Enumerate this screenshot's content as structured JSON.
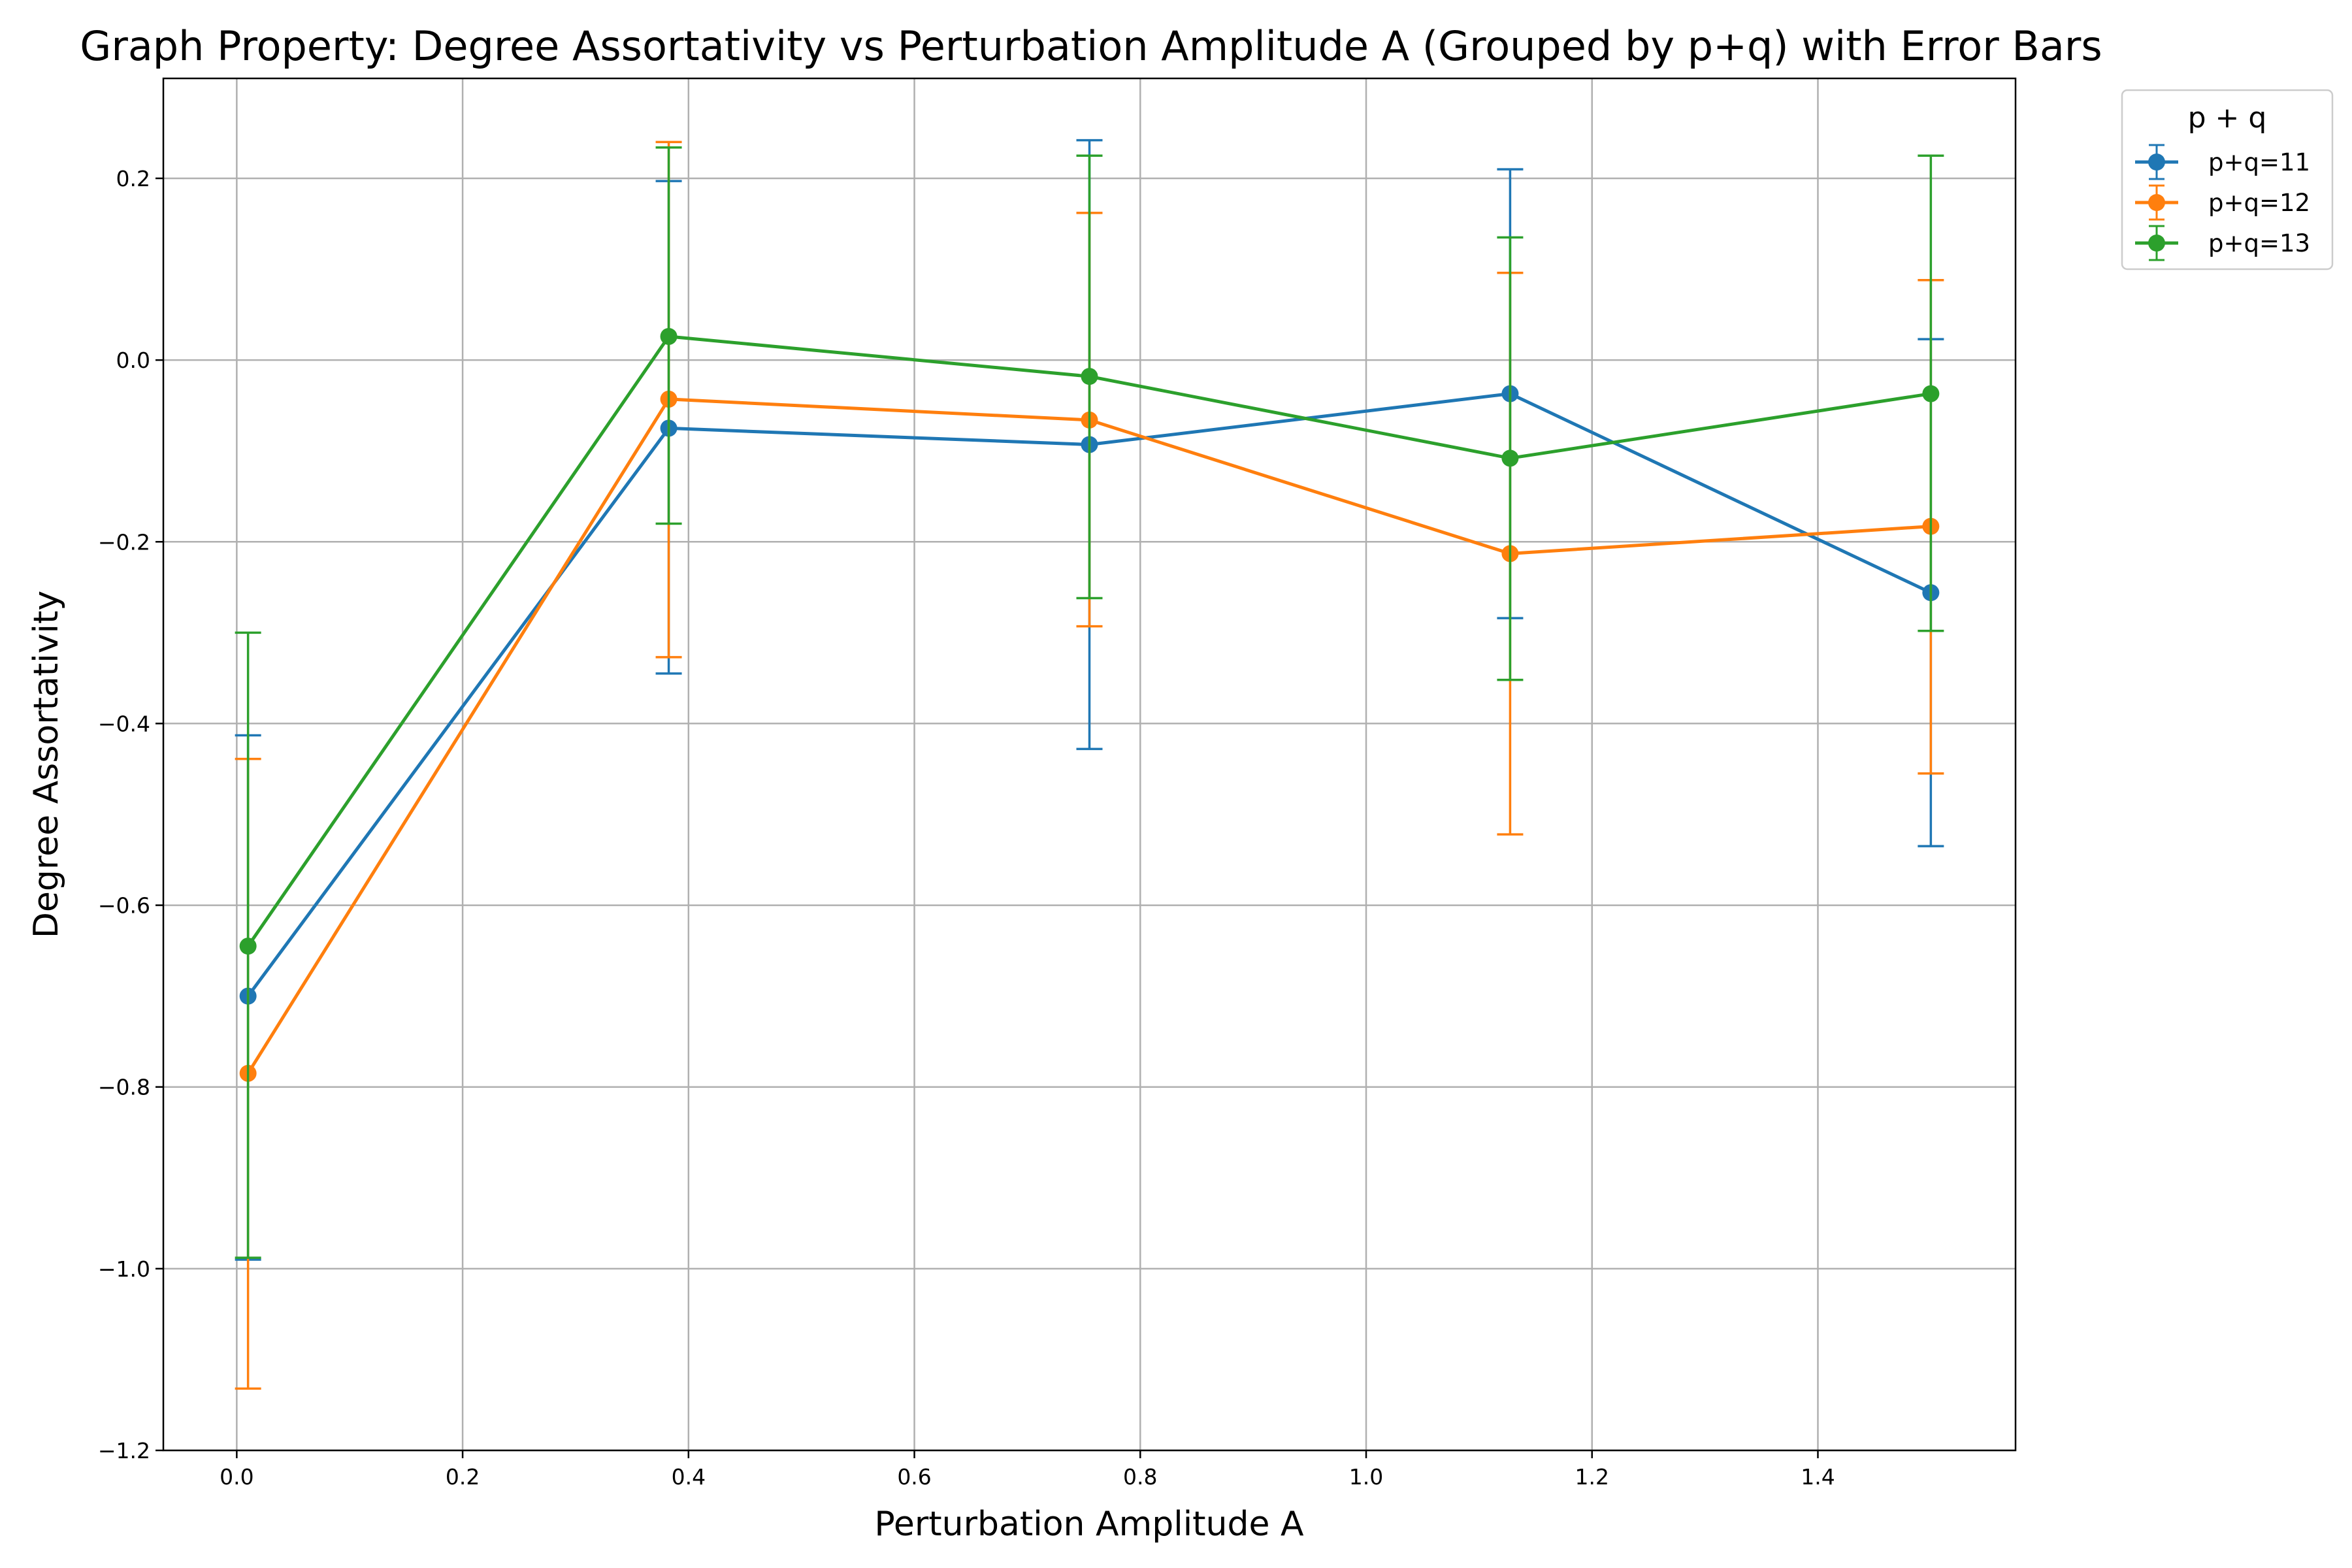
{
  "chart_data": {
    "type": "line",
    "title": "Graph Property: Degree Assortativity vs Perturbation Amplitude A (Grouped by p+q) with Error Bars",
    "xlabel": "Perturbation Amplitude A",
    "ylabel": "Degree Assortativity",
    "xlim": [
      -0.065,
      1.575
    ],
    "ylim": [
      -1.2,
      0.31
    ],
    "x_ticks": [
      0.0,
      0.2,
      0.4,
      0.6,
      0.8,
      1.0,
      1.2,
      1.4
    ],
    "x_tick_labels": [
      "0.0",
      "0.2",
      "0.4",
      "0.6",
      "0.8",
      "1.0",
      "1.2",
      "1.4"
    ],
    "y_ticks": [
      -1.2,
      -1.0,
      -0.8,
      -0.6,
      -0.4,
      -0.2,
      0.0,
      0.2
    ],
    "y_tick_labels": [
      "−1.2",
      "−1.0",
      "−0.8",
      "−0.6",
      "−0.4",
      "−0.2",
      "0.0",
      "0.2"
    ],
    "grid": true,
    "legend_title": "p + q",
    "legend_position": "outside top-right",
    "x": [
      0.01,
      0.3825,
      0.755,
      1.1275,
      1.5
    ],
    "series": [
      {
        "name": "p+q=11",
        "color": "#1f77b4",
        "values": [
          -0.7,
          -0.075,
          -0.093,
          -0.037,
          -0.256
        ],
        "err_low": [
          -0.99,
          -0.345,
          -0.428,
          -0.284,
          -0.535
        ],
        "err_high": [
          -0.413,
          0.197,
          0.242,
          0.21,
          0.023
        ]
      },
      {
        "name": "p+q=12",
        "color": "#ff7f0e",
        "values": [
          -0.785,
          -0.043,
          -0.066,
          -0.213,
          -0.183
        ],
        "err_low": [
          -1.132,
          -0.327,
          -0.293,
          -0.522,
          -0.455
        ],
        "err_high": [
          -0.439,
          0.24,
          0.162,
          0.096,
          0.088
        ]
      },
      {
        "name": "p+q=13",
        "color": "#2ca02c",
        "values": [
          -0.645,
          0.026,
          -0.018,
          -0.108,
          -0.037
        ],
        "err_low": [
          -0.988,
          -0.18,
          -0.262,
          -0.352,
          -0.298
        ],
        "err_high": [
          -0.3,
          0.234,
          0.225,
          0.135,
          0.225
        ]
      }
    ]
  }
}
